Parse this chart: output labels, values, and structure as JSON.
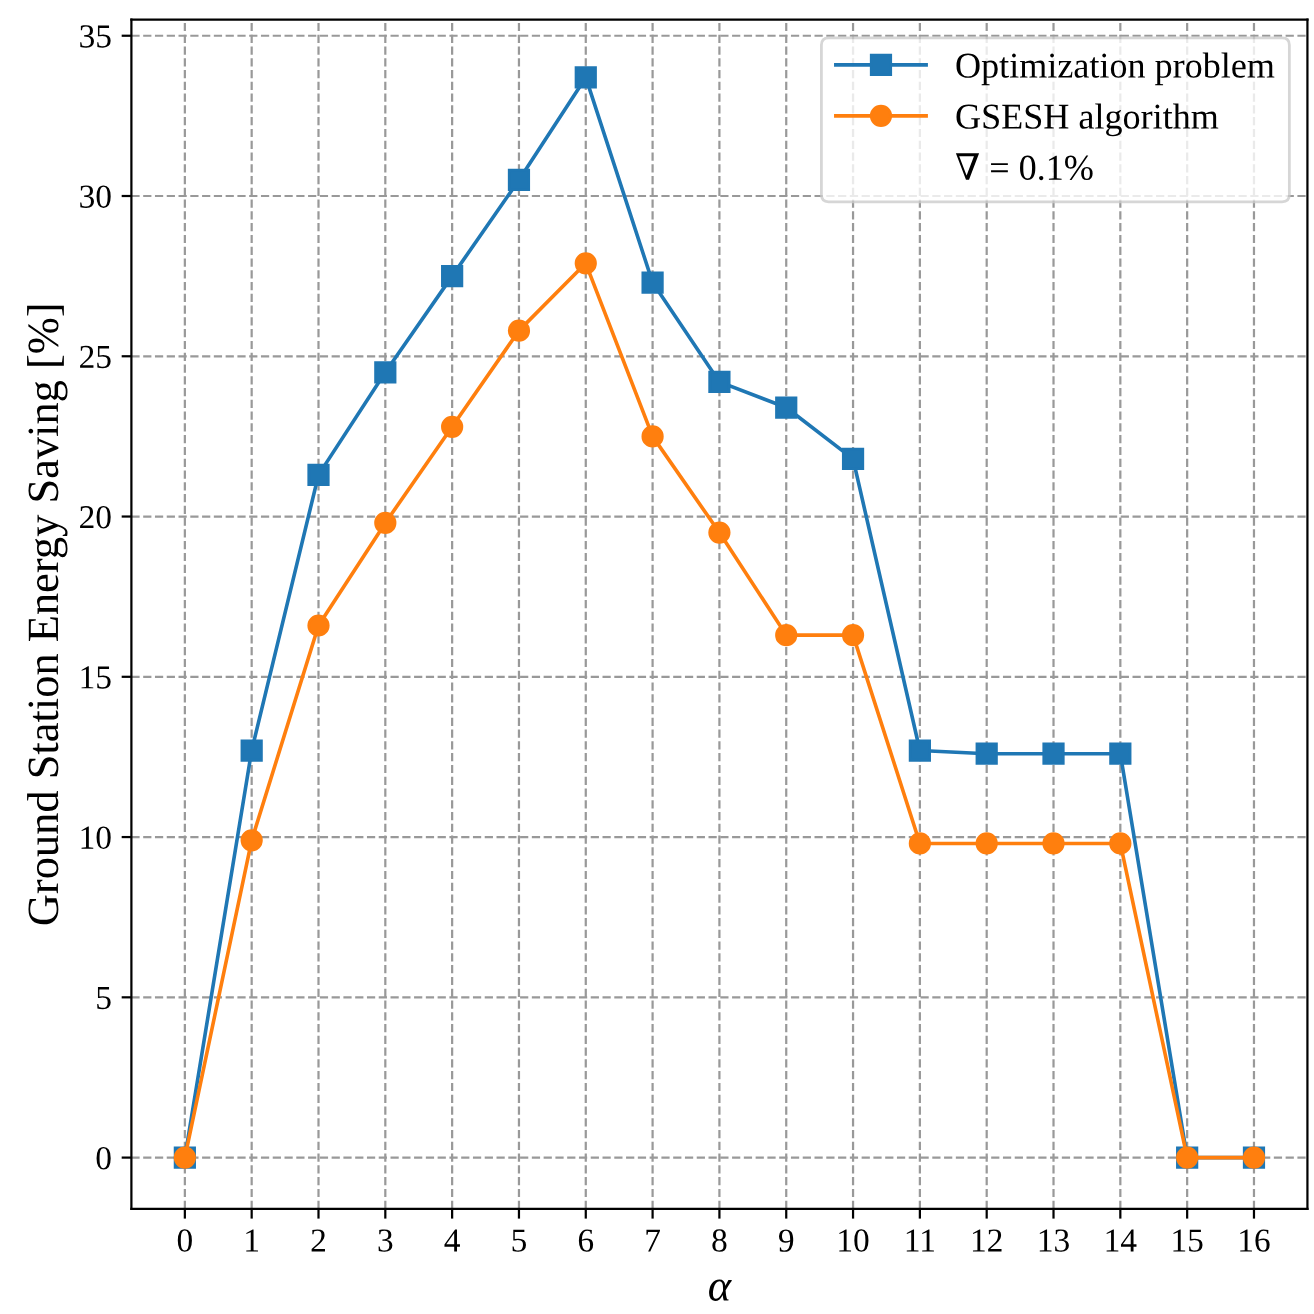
{
  "chart_data": {
    "type": "line",
    "xlabel": "α",
    "ylabel": "Ground Station Energy Saving [%]",
    "x": [
      0,
      1,
      2,
      3,
      4,
      5,
      6,
      7,
      8,
      9,
      10,
      11,
      12,
      13,
      14,
      15,
      16
    ],
    "series": [
      {
        "name": "Optimization problem",
        "color": "#1f77b4",
        "marker": "square",
        "values": [
          0,
          12.7,
          21.3,
          24.5,
          27.5,
          30.5,
          33.7,
          27.3,
          24.2,
          23.4,
          21.8,
          12.7,
          12.6,
          12.6,
          12.6,
          0,
          0
        ]
      },
      {
        "name": "GSESH algorithm",
        "color": "#ff7f0e",
        "marker": "circle",
        "values": [
          0,
          9.9,
          16.6,
          19.8,
          22.8,
          25.8,
          27.9,
          22.5,
          19.5,
          16.3,
          16.3,
          9.8,
          9.8,
          9.8,
          9.8,
          0,
          0
        ]
      }
    ],
    "annotations": [
      "∇ = 0.1%"
    ],
    "xlim": [
      -0.8,
      16.8
    ],
    "xticks": [
      0,
      1,
      2,
      3,
      4,
      5,
      6,
      7,
      8,
      9,
      10,
      11,
      12,
      13,
      14,
      15,
      16
    ],
    "ylim": [
      -1.6,
      35.5
    ],
    "yticks": [
      0,
      5,
      10,
      15,
      20,
      25,
      30,
      35
    ],
    "grid": true,
    "legend": "top right",
    "line_style": "solid"
  }
}
